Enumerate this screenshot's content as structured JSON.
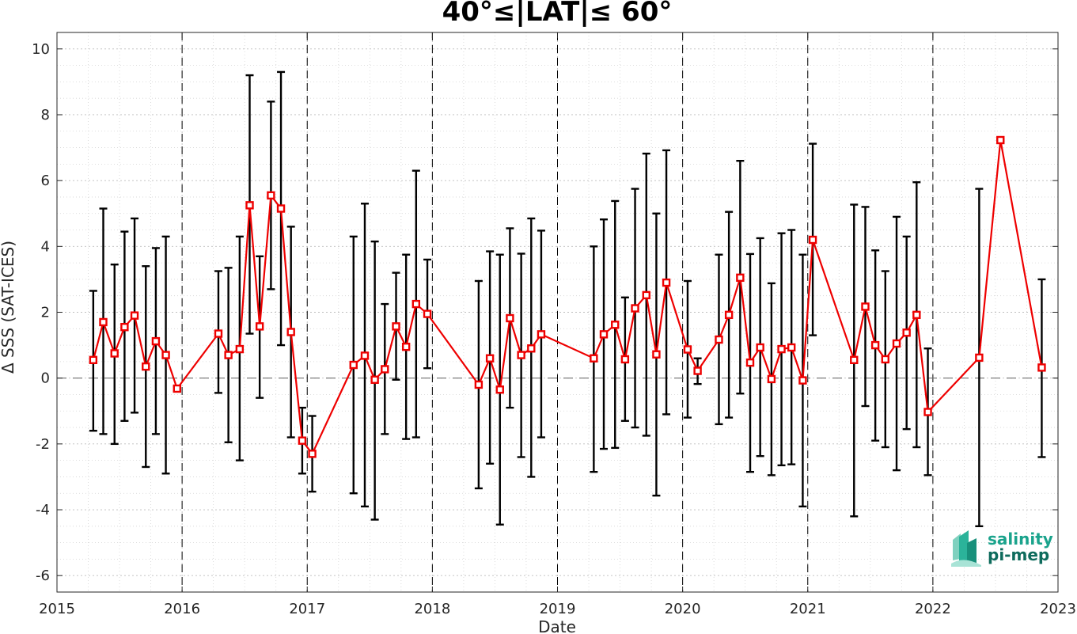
{
  "chart_data": {
    "type": "line",
    "title": "40°≤|LAT|≤ 60°",
    "xlabel": "Date",
    "ylabel": "Δ SSS (SAT-ICES)",
    "xlim": [
      2015,
      2023
    ],
    "ylim": [
      -6.5,
      10.5
    ],
    "xticks": [
      "2015",
      "2016",
      "2017",
      "2018",
      "2019",
      "2020",
      "2021",
      "2022",
      "2023"
    ],
    "yticks": [
      "-6",
      "-4",
      "-2",
      "0",
      "2",
      "4",
      "6",
      "8",
      "10"
    ],
    "grid": true,
    "year_dividers": [
      2016,
      2017,
      2018,
      2019,
      2020,
      2021,
      2022
    ],
    "series": [
      {
        "color": "#ee0000",
        "points": [
          {
            "x": 2015.29,
            "y": 0.55,
            "lo": -1.6,
            "hi": 2.65
          },
          {
            "x": 2015.37,
            "y": 1.7,
            "lo": -1.7,
            "hi": 5.15
          },
          {
            "x": 2015.46,
            "y": 0.75,
            "lo": -2.0,
            "hi": 3.45
          },
          {
            "x": 2015.54,
            "y": 1.55,
            "lo": -1.3,
            "hi": 4.45
          },
          {
            "x": 2015.62,
            "y": 1.9,
            "lo": -1.05,
            "hi": 4.85
          },
          {
            "x": 2015.71,
            "y": 0.35,
            "lo": -2.7,
            "hi": 3.4
          },
          {
            "x": 2015.79,
            "y": 1.12,
            "lo": -1.7,
            "hi": 3.95
          },
          {
            "x": 2015.87,
            "y": 0.7,
            "lo": -2.9,
            "hi": 4.3
          },
          {
            "x": 2015.96,
            "y": -0.32,
            "lo": -0.4,
            "hi": -0.25
          },
          {
            "x": 2016.29,
            "y": 1.35,
            "lo": -0.45,
            "hi": 3.25
          },
          {
            "x": 2016.37,
            "y": 0.7,
            "lo": -1.95,
            "hi": 3.35
          },
          {
            "x": 2016.46,
            "y": 0.88,
            "lo": -2.5,
            "hi": 4.3
          },
          {
            "x": 2016.54,
            "y": 5.25,
            "lo": 1.35,
            "hi": 9.2
          },
          {
            "x": 2016.62,
            "y": 1.57,
            "lo": -0.6,
            "hi": 3.7
          },
          {
            "x": 2016.71,
            "y": 5.55,
            "lo": 2.7,
            "hi": 8.4
          },
          {
            "x": 2016.79,
            "y": 5.15,
            "lo": 1.0,
            "hi": 9.3
          },
          {
            "x": 2016.87,
            "y": 1.4,
            "lo": -1.8,
            "hi": 4.6
          },
          {
            "x": 2016.96,
            "y": -1.9,
            "lo": -2.9,
            "hi": -0.9
          },
          {
            "x": 2017.04,
            "y": -2.3,
            "lo": -3.45,
            "hi": -1.15
          },
          {
            "x": 2017.37,
            "y": 0.4,
            "lo": -3.5,
            "hi": 4.3
          },
          {
            "x": 2017.46,
            "y": 0.68,
            "lo": -3.9,
            "hi": 5.3
          },
          {
            "x": 2017.54,
            "y": -0.05,
            "lo": -4.3,
            "hi": 4.15
          },
          {
            "x": 2017.62,
            "y": 0.27,
            "lo": -1.7,
            "hi": 2.25
          },
          {
            "x": 2017.71,
            "y": 1.57,
            "lo": -0.05,
            "hi": 3.2
          },
          {
            "x": 2017.79,
            "y": 0.95,
            "lo": -1.85,
            "hi": 3.75
          },
          {
            "x": 2017.87,
            "y": 2.25,
            "lo": -1.8,
            "hi": 6.3
          },
          {
            "x": 2017.96,
            "y": 1.95,
            "lo": 0.3,
            "hi": 3.6
          },
          {
            "x": 2018.37,
            "y": -0.2,
            "lo": -3.35,
            "hi": 2.95
          },
          {
            "x": 2018.46,
            "y": 0.6,
            "lo": -2.6,
            "hi": 3.85
          },
          {
            "x": 2018.54,
            "y": -0.35,
            "lo": -4.45,
            "hi": 3.75
          },
          {
            "x": 2018.62,
            "y": 1.82,
            "lo": -0.9,
            "hi": 4.55
          },
          {
            "x": 2018.71,
            "y": 0.7,
            "lo": -2.4,
            "hi": 3.78
          },
          {
            "x": 2018.79,
            "y": 0.9,
            "lo": -3.0,
            "hi": 4.85
          },
          {
            "x": 2018.87,
            "y": 1.33,
            "lo": -1.8,
            "hi": 4.48
          },
          {
            "x": 2019.29,
            "y": 0.6,
            "lo": -2.85,
            "hi": 4.0
          },
          {
            "x": 2019.37,
            "y": 1.33,
            "lo": -2.15,
            "hi": 4.82
          },
          {
            "x": 2019.46,
            "y": 1.62,
            "lo": -2.12,
            "hi": 5.38
          },
          {
            "x": 2019.54,
            "y": 0.57,
            "lo": -1.3,
            "hi": 2.45
          },
          {
            "x": 2019.62,
            "y": 2.12,
            "lo": -1.5,
            "hi": 5.75
          },
          {
            "x": 2019.71,
            "y": 2.52,
            "lo": -1.75,
            "hi": 6.82
          },
          {
            "x": 2019.79,
            "y": 0.72,
            "lo": -3.57,
            "hi": 5.0
          },
          {
            "x": 2019.87,
            "y": 2.9,
            "lo": -1.1,
            "hi": 6.92
          },
          {
            "x": 2020.04,
            "y": 0.87,
            "lo": -1.2,
            "hi": 2.95
          },
          {
            "x": 2020.12,
            "y": 0.22,
            "lo": -0.18,
            "hi": 0.6
          },
          {
            "x": 2020.29,
            "y": 1.17,
            "lo": -1.4,
            "hi": 3.75
          },
          {
            "x": 2020.37,
            "y": 1.92,
            "lo": -1.2,
            "hi": 5.05
          },
          {
            "x": 2020.46,
            "y": 3.05,
            "lo": -0.47,
            "hi": 6.6
          },
          {
            "x": 2020.54,
            "y": 0.47,
            "lo": -2.85,
            "hi": 3.77
          },
          {
            "x": 2020.62,
            "y": 0.93,
            "lo": -2.37,
            "hi": 4.25
          },
          {
            "x": 2020.71,
            "y": -0.03,
            "lo": -2.95,
            "hi": 2.88
          },
          {
            "x": 2020.79,
            "y": 0.88,
            "lo": -2.65,
            "hi": 4.4
          },
          {
            "x": 2020.87,
            "y": 0.93,
            "lo": -2.62,
            "hi": 4.5
          },
          {
            "x": 2020.96,
            "y": -0.07,
            "lo": -3.9,
            "hi": 3.75
          },
          {
            "x": 2021.04,
            "y": 4.2,
            "lo": 1.3,
            "hi": 7.12
          },
          {
            "x": 2021.37,
            "y": 0.55,
            "lo": -4.2,
            "hi": 5.27
          },
          {
            "x": 2021.46,
            "y": 2.17,
            "lo": -0.85,
            "hi": 5.2
          },
          {
            "x": 2021.54,
            "y": 1.0,
            "lo": -1.9,
            "hi": 3.88
          },
          {
            "x": 2021.62,
            "y": 0.57,
            "lo": -2.1,
            "hi": 3.25
          },
          {
            "x": 2021.71,
            "y": 1.05,
            "lo": -2.8,
            "hi": 4.9
          },
          {
            "x": 2021.79,
            "y": 1.38,
            "lo": -1.55,
            "hi": 4.3
          },
          {
            "x": 2021.87,
            "y": 1.92,
            "lo": -2.1,
            "hi": 5.95
          },
          {
            "x": 2021.96,
            "y": -1.03,
            "lo": -2.95,
            "hi": 0.9
          },
          {
            "x": 2022.37,
            "y": 0.62,
            "lo": -4.5,
            "hi": 5.75
          },
          {
            "x": 2022.54,
            "y": 7.23,
            "lo": 7.2,
            "hi": 7.26
          },
          {
            "x": 2022.87,
            "y": 0.32,
            "lo": -2.4,
            "hi": 3.0
          }
        ]
      }
    ]
  },
  "logo": {
    "line1": "salinity",
    "line2": "pi-mep",
    "color1": "#1aa38c",
    "color2": "#0e6b5c"
  }
}
